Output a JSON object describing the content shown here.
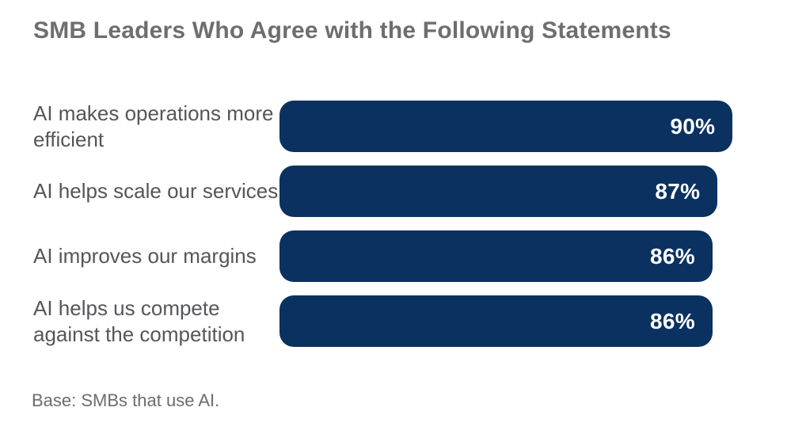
{
  "page": {
    "title": "SMB Leaders Who Agree with the Following Statements",
    "footnote": "Base: SMBs that use AI."
  },
  "chart_data": {
    "type": "bar",
    "orientation": "horizontal",
    "title": "SMB Leaders Who Agree with the Following Statements",
    "categories": [
      "AI makes operations more efficient",
      "AI helps scale our services",
      "AI improves our margins",
      "AI helps us compete against the competition"
    ],
    "values": [
      90,
      87,
      86,
      86
    ],
    "value_labels": [
      "90%",
      "87%",
      "86%",
      "86%"
    ],
    "xlim": [
      0,
      100
    ],
    "grid": false,
    "legend": false,
    "annotations": [
      "Base: SMBs that use AI."
    ],
    "colors": {
      "bar_fill": "#0b3161",
      "value_text": "#ffffff",
      "title_text": "#6d6d72",
      "category_text": "#54565b",
      "footnote_text": "#6a6c6f",
      "background": "#ffffff"
    }
  }
}
